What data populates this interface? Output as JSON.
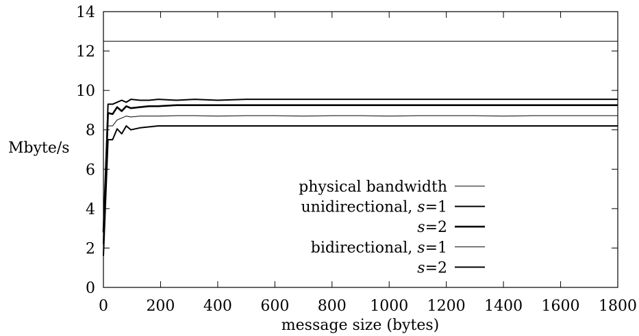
{
  "chart_data": {
    "type": "line",
    "title": "",
    "xlabel": "message size (bytes)",
    "ylabel": "Mbyte/s",
    "xlim": [
      0,
      1800
    ],
    "ylim": [
      0,
      14
    ],
    "xticks": [
      0,
      200,
      400,
      600,
      800,
      1000,
      1200,
      1400,
      1600,
      1800
    ],
    "yticks": [
      0,
      2,
      4,
      6,
      8,
      10,
      12,
      14
    ],
    "grid": false,
    "legend_position": "bottom-right",
    "series": [
      {
        "label_parts": [
          "physical bandwidth"
        ],
        "color": "#000000",
        "x": [
          0,
          1800
        ],
        "y": [
          12.5,
          12.5
        ]
      },
      {
        "label_parts": [
          "unidirectional, ",
          "s",
          "=1"
        ],
        "color": "#000000",
        "x": [
          0,
          16,
          32,
          48,
          64,
          80,
          96,
          128,
          160,
          192,
          256,
          320,
          400,
          500,
          600,
          700,
          800,
          1000,
          1200,
          1400,
          1600,
          1800
        ],
        "y": [
          2.2,
          9.3,
          9.3,
          9.4,
          9.5,
          9.4,
          9.55,
          9.5,
          9.5,
          9.55,
          9.5,
          9.55,
          9.5,
          9.55,
          9.55,
          9.55,
          9.55,
          9.55,
          9.55,
          9.55,
          9.55,
          9.55
        ]
      },
      {
        "label_parts": [
          "s",
          "=2"
        ],
        "color": "#000000",
        "x": [
          0,
          16,
          32,
          48,
          64,
          80,
          96,
          128,
          160,
          192,
          256,
          320,
          400,
          500,
          600,
          700,
          800,
          1000,
          1200,
          1400,
          1600,
          1800
        ],
        "y": [
          2.8,
          8.85,
          8.8,
          9.15,
          8.95,
          9.2,
          9.1,
          9.15,
          9.2,
          9.2,
          9.25,
          9.25,
          9.25,
          9.25,
          9.25,
          9.25,
          9.25,
          9.25,
          9.25,
          9.25,
          9.25,
          9.25
        ]
      },
      {
        "label_parts": [
          "bidirectional, ",
          "s",
          "=1"
        ],
        "color": "#000000",
        "x": [
          0,
          16,
          32,
          48,
          64,
          80,
          96,
          128,
          160,
          192,
          256,
          320,
          400,
          500,
          600,
          700,
          800,
          900,
          1000,
          1100,
          1200,
          1300,
          1400,
          1500,
          1600,
          1700,
          1800
        ],
        "y": [
          1.9,
          8.2,
          8.2,
          8.5,
          8.6,
          8.7,
          8.65,
          8.7,
          8.7,
          8.7,
          8.72,
          8.72,
          8.7,
          8.72,
          8.72,
          8.7,
          8.72,
          8.72,
          8.7,
          8.72,
          8.72,
          8.72,
          8.7,
          8.72,
          8.72,
          8.72,
          8.72
        ]
      },
      {
        "label_parts": [
          "s",
          "=2"
        ],
        "color": "#000000",
        "x": [
          0,
          16,
          32,
          48,
          64,
          80,
          96,
          128,
          160,
          192,
          256,
          320,
          400,
          500,
          600,
          700,
          800,
          1000,
          1200,
          1400,
          1600,
          1800
        ],
        "y": [
          1.6,
          7.5,
          7.5,
          8.05,
          7.8,
          8.2,
          8.0,
          8.1,
          8.15,
          8.2,
          8.2,
          8.2,
          8.2,
          8.2,
          8.2,
          8.2,
          8.2,
          8.2,
          8.2,
          8.2,
          8.2,
          8.2
        ]
      }
    ]
  }
}
